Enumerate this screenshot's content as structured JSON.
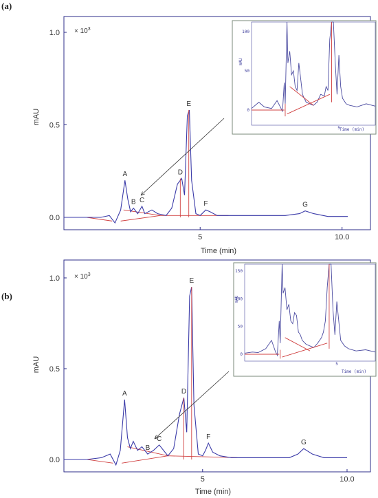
{
  "chart_data": [
    {
      "type": "line",
      "panel_label": "(a)",
      "multiplier": "× 10",
      "multiplier_exp": "3",
      "xlabel": "Time (min)",
      "ylabel": "mAU",
      "x_ticks": [
        "5",
        "10.0"
      ],
      "x_tick_values": [
        5,
        10
      ],
      "y_ticks": [
        "0.0",
        "0.5",
        "1.0"
      ],
      "y_tick_values": [
        0,
        0.5,
        1.0
      ],
      "xlim": [
        0.2,
        11.0
      ],
      "ylim": [
        -0.05,
        1.05
      ],
      "series": [
        {
          "x": [
            0.2,
            1.0,
            1.5,
            1.8,
            2.0,
            2.2,
            2.35,
            2.45,
            2.55,
            2.65,
            2.8,
            2.95,
            3.05,
            3.3,
            3.5,
            3.8,
            4.0,
            4.2,
            4.35,
            4.45,
            4.55,
            4.62,
            4.7,
            4.85,
            5.0,
            5.2,
            5.35,
            5.6,
            6.0,
            7.0,
            8.0,
            8.5,
            8.7,
            9.0,
            9.5,
            10.2
          ],
          "y": [
            0.0,
            0.0,
            0.0,
            0.01,
            -0.03,
            0.04,
            0.2,
            0.1,
            0.03,
            0.05,
            0.02,
            0.06,
            0.02,
            0.04,
            0.02,
            0.01,
            0.05,
            0.18,
            0.21,
            0.12,
            0.55,
            0.58,
            0.2,
            0.02,
            0.01,
            0.04,
            0.03,
            0.01,
            0.01,
            0.01,
            0.01,
            0.02,
            0.035,
            0.02,
            0.005,
            0.005
          ]
        }
      ],
      "peaks": [
        {
          "label": "A",
          "x": 2.35,
          "y": 0.2
        },
        {
          "label": "B",
          "x": 2.65,
          "y": 0.05
        },
        {
          "label": "C",
          "x": 2.95,
          "y": 0.06
        },
        {
          "label": "D",
          "x": 4.3,
          "y": 0.21
        },
        {
          "label": "E",
          "x": 4.6,
          "y": 0.58
        },
        {
          "label": "F",
          "x": 5.2,
          "y": 0.04
        },
        {
          "label": "G",
          "x": 8.7,
          "y": 0.035
        }
      ],
      "inset": {
        "xlabel": "Time (min)",
        "ylabel": "mAU",
        "x_ticks": [
          "5"
        ],
        "x_tick_values": [
          5
        ],
        "y_ticks": [
          "0",
          "50",
          "100"
        ],
        "y_tick_values": [
          0,
          50,
          100
        ],
        "xlim": [
          0.2,
          7.0
        ],
        "ylim": [
          -10,
          120
        ]
      }
    },
    {
      "type": "line",
      "panel_label": "(b)",
      "multiplier": "× 10",
      "multiplier_exp": "3",
      "xlabel": "Time (min)",
      "ylabel": "mAU",
      "x_ticks": [
        "5",
        "10.0"
      ],
      "x_tick_values": [
        5,
        10
      ],
      "y_ticks": [
        "0.0",
        "0.5",
        "1.0"
      ],
      "y_tick_values": [
        0,
        0.5,
        1.0
      ],
      "xlim": [
        0.2,
        10.5
      ],
      "ylim": [
        -0.05,
        1.05
      ],
      "series": [
        {
          "x": [
            0.2,
            1.0,
            1.5,
            1.8,
            2.0,
            2.15,
            2.3,
            2.4,
            2.5,
            2.6,
            2.75,
            2.9,
            3.1,
            3.3,
            3.5,
            3.8,
            4.0,
            4.2,
            4.35,
            4.45,
            4.55,
            4.62,
            4.7,
            4.85,
            5.0,
            5.1,
            5.2,
            5.35,
            5.6,
            6.0,
            7.0,
            8.0,
            8.3,
            8.5,
            8.8,
            9.2,
            10.0
          ],
          "y": [
            0.0,
            0.0,
            0.01,
            0.03,
            -0.03,
            0.05,
            0.33,
            0.12,
            0.06,
            0.1,
            0.05,
            0.07,
            0.03,
            0.05,
            0.08,
            0.02,
            0.06,
            0.25,
            0.34,
            0.15,
            0.9,
            0.95,
            0.3,
            0.03,
            0.02,
            0.05,
            0.09,
            0.04,
            0.02,
            0.01,
            0.01,
            0.01,
            0.03,
            0.06,
            0.03,
            0.01,
            0.01
          ]
        }
      ],
      "peaks": [
        {
          "label": "A",
          "x": 2.3,
          "y": 0.33
        },
        {
          "label": "B",
          "x": 3.1,
          "y": 0.03
        },
        {
          "label": "C",
          "x": 3.5,
          "y": 0.08
        },
        {
          "label": "D",
          "x": 4.35,
          "y": 0.34
        },
        {
          "label": "E",
          "x": 4.62,
          "y": 0.95
        },
        {
          "label": "F",
          "x": 5.2,
          "y": 0.09
        },
        {
          "label": "G",
          "x": 8.5,
          "y": 0.06
        }
      ],
      "inset": {
        "xlabel": "Time (min)",
        "ylabel": "mAU",
        "x_ticks": [
          "5"
        ],
        "x_tick_values": [
          5
        ],
        "y_ticks": [
          "0",
          "50",
          "100",
          "150"
        ],
        "y_tick_values": [
          0,
          50,
          100,
          150
        ],
        "xlim": [
          0.2,
          7.0
        ],
        "ylim": [
          -10,
          160
        ]
      }
    }
  ]
}
